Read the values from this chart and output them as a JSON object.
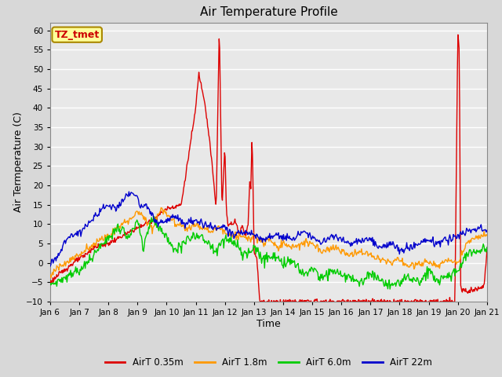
{
  "title": "Air Temperature Profile",
  "xlabel": "Time",
  "ylabel": "Air Termperature (C)",
  "ylim": [
    -10,
    62
  ],
  "yticks": [
    -10,
    -5,
    0,
    5,
    10,
    15,
    20,
    25,
    30,
    35,
    40,
    45,
    50,
    55,
    60
  ],
  "xlim": [
    0,
    15
  ],
  "xtick_labels": [
    "Jan 6",
    "Jan 7",
    "Jan 8",
    "Jan 9",
    "Jan 10",
    "Jan 11",
    "Jan 12",
    "Jan 13",
    "Jan 14",
    "Jan 15",
    "Jan 16",
    "Jan 17",
    "Jan 18",
    "Jan 19",
    "Jan 20",
    "Jan 21"
  ],
  "annotation_text": "TZ_tmet",
  "annotation_color": "#cc0000",
  "annotation_bg": "#ffff99",
  "line_colors": [
    "#dd0000",
    "#ff9900",
    "#00cc00",
    "#0000cc"
  ],
  "line_labels": [
    "AirT 0.35m",
    "AirT 1.8m",
    "AirT 6.0m",
    "AirT 22m"
  ],
  "background_color": "#e8e8e8",
  "grid_color": "#ffffff",
  "title_fontsize": 11,
  "axis_fontsize": 9,
  "tick_fontsize": 7.5
}
